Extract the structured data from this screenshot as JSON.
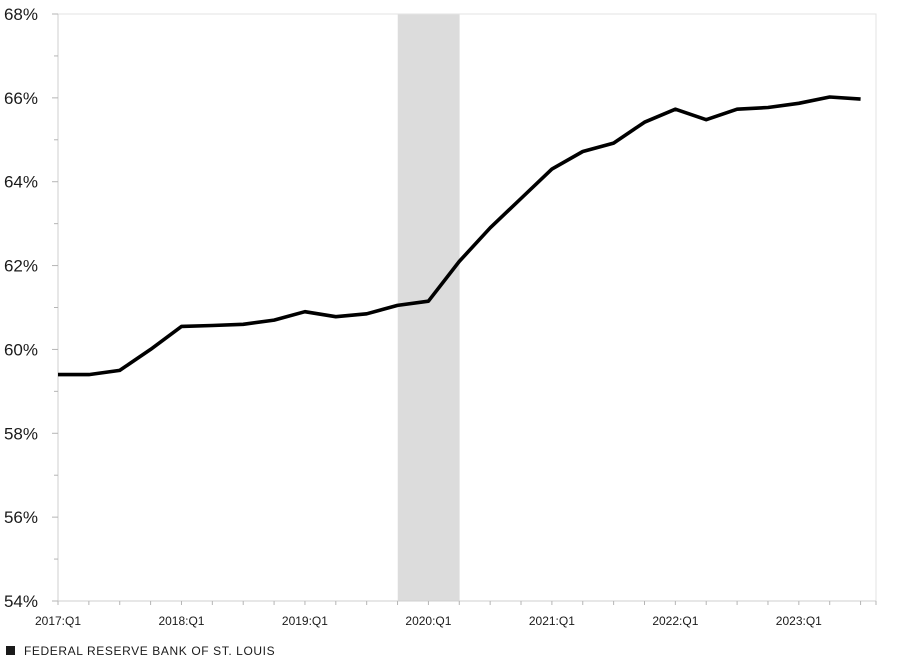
{
  "chart_data": {
    "type": "line",
    "title": "",
    "xlabel": "",
    "ylabel": "",
    "x": [
      "2017:Q1",
      "2017:Q2",
      "2017:Q3",
      "2017:Q4",
      "2018:Q1",
      "2018:Q2",
      "2018:Q3",
      "2018:Q4",
      "2019:Q1",
      "2019:Q2",
      "2019:Q3",
      "2019:Q4",
      "2020:Q1",
      "2020:Q2",
      "2020:Q3",
      "2020:Q4",
      "2021:Q1",
      "2021:Q2",
      "2021:Q3",
      "2021:Q4",
      "2022:Q1",
      "2022:Q2",
      "2022:Q3",
      "2022:Q4",
      "2023:Q1",
      "2023:Q2",
      "2023:Q3"
    ],
    "series": [
      {
        "name": "",
        "color": "#000000",
        "values": [
          59.4,
          59.4,
          59.5,
          60.0,
          60.55,
          60.57,
          60.6,
          60.7,
          60.9,
          60.78,
          60.85,
          61.05,
          61.15,
          62.1,
          62.9,
          63.6,
          64.3,
          64.72,
          64.92,
          65.42,
          65.73,
          65.48,
          65.73,
          65.77,
          65.87,
          66.02,
          65.97
        ]
      }
    ],
    "ylim": [
      54,
      68
    ],
    "y_ticks": [
      54,
      56,
      58,
      60,
      62,
      64,
      66,
      68
    ],
    "y_tick_labels": [
      "54%",
      "56%",
      "58%",
      "60%",
      "62%",
      "64%",
      "66%",
      "68%"
    ],
    "x_tick_labels": [
      {
        "label": "2017:Q1",
        "at": "2017:Q1"
      },
      {
        "label": "2018:Q1",
        "at": "2018:Q1"
      },
      {
        "label": "2019:Q1",
        "at": "2019:Q1"
      },
      {
        "label": "2020:Q1",
        "at": "2020:Q1"
      },
      {
        "label": "2021:Q1",
        "at": "2021:Q1"
      },
      {
        "label": "2022:Q1",
        "at": "2022:Q1"
      },
      {
        "label": "2023:Q1",
        "at": "2023:Q1"
      }
    ],
    "shaded_region": {
      "from": "2019:Q4",
      "to": "2020:Q2",
      "color": "#dcdcdc"
    },
    "grid": false
  },
  "source": {
    "text": "FEDERAL RESERVE BANK OF ST. LOUIS"
  }
}
